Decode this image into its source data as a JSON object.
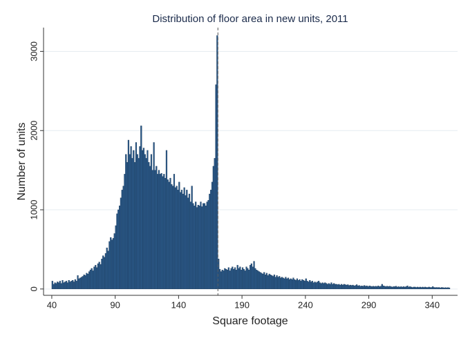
{
  "chart_data": {
    "type": "histogram",
    "title": "Distribution of floor area in new units, 2011",
    "x_label": "Square footage",
    "y_label": "Number of units",
    "bins": [
      40,
      41,
      42,
      43,
      44,
      45,
      46,
      47,
      48,
      49,
      50,
      51,
      52,
      53,
      54,
      55,
      56,
      57,
      58,
      59,
      60,
      61,
      62,
      63,
      64,
      65,
      66,
      67,
      68,
      69,
      70,
      71,
      72,
      73,
      74,
      75,
      76,
      77,
      78,
      79,
      80,
      81,
      82,
      83,
      84,
      85,
      86,
      87,
      88,
      89,
      90,
      91,
      92,
      93,
      94,
      95,
      96,
      97,
      98,
      99,
      100,
      101,
      102,
      103,
      104,
      105,
      106,
      107,
      108,
      109,
      110,
      111,
      112,
      113,
      114,
      115,
      116,
      117,
      118,
      119,
      120,
      121,
      122,
      123,
      124,
      125,
      126,
      127,
      128,
      129,
      130,
      131,
      132,
      133,
      134,
      135,
      136,
      137,
      138,
      139,
      140,
      141,
      142,
      143,
      144,
      145,
      146,
      147,
      148,
      149,
      150,
      151,
      152,
      153,
      154,
      155,
      156,
      157,
      158,
      159,
      160,
      161,
      162,
      163,
      164,
      165,
      166,
      167,
      168,
      169,
      170,
      171,
      172,
      173,
      174,
      175,
      176,
      177,
      178,
      179,
      180,
      181,
      182,
      183,
      184,
      185,
      186,
      187,
      188,
      189,
      190,
      191,
      192,
      193,
      194,
      195,
      196,
      197,
      198,
      199,
      200,
      201,
      202,
      203,
      204,
      205,
      206,
      207,
      208,
      209,
      210,
      211,
      212,
      213,
      214,
      215,
      216,
      217,
      218,
      219,
      220,
      221,
      222,
      223,
      224,
      225,
      226,
      227,
      228,
      229,
      230,
      231,
      232,
      233,
      234,
      235,
      236,
      237,
      238,
      239,
      240,
      241,
      242,
      243,
      244,
      245,
      246,
      247,
      248,
      249,
      250,
      251,
      252,
      253,
      254,
      255,
      256,
      257,
      258,
      259,
      260,
      261,
      262,
      263,
      264,
      265,
      266,
      267,
      268,
      269,
      270,
      271,
      272,
      273,
      274,
      275,
      276,
      277,
      278,
      279,
      280,
      281,
      282,
      283,
      284,
      285,
      286,
      287,
      288,
      289,
      290,
      291,
      292,
      293,
      294,
      295,
      296,
      297,
      298,
      299,
      300,
      301,
      302,
      303,
      304,
      305,
      306,
      307,
      308,
      309,
      310,
      311,
      312,
      313,
      314,
      315,
      316,
      317,
      318,
      319,
      320,
      321,
      322,
      323,
      324,
      325,
      326,
      327,
      328,
      329,
      330,
      331,
      332,
      333,
      334,
      335,
      336,
      337,
      338,
      339,
      340,
      341,
      342,
      343,
      344,
      345,
      346,
      347,
      348,
      349,
      350,
      351,
      352,
      353,
      354
    ],
    "values": [
      100,
      60,
      80,
      70,
      90,
      80,
      100,
      70,
      110,
      80,
      90,
      100,
      80,
      110,
      90,
      100,
      110,
      90,
      120,
      100,
      170,
      130,
      140,
      150,
      160,
      180,
      170,
      200,
      190,
      220,
      240,
      260,
      230,
      280,
      300,
      270,
      320,
      340,
      310,
      380,
      420,
      400,
      450,
      520,
      480,
      600,
      650,
      620,
      640,
      700,
      800,
      950,
      1000,
      1050,
      1150,
      1250,
      1300,
      1450,
      1700,
      1600,
      1880,
      1700,
      1800,
      1650,
      1750,
      1600,
      1850,
      1700,
      1650,
      1800,
      2060,
      1750,
      1780,
      1700,
      1650,
      1750,
      1600,
      1550,
      1700,
      1500,
      1850,
      1500,
      1550,
      1450,
      1500,
      1450,
      1460,
      1420,
      1450,
      1400,
      1750,
      1380,
      1350,
      1400,
      1320,
      1300,
      1450,
      1280,
      1300,
      1250,
      1350,
      1220,
      1250,
      1200,
      1280,
      1180,
      1250,
      1150,
      1200,
      1100,
      1300,
      1080,
      1050,
      1100,
      1030,
      1060,
      1050,
      1100,
      1040,
      1080,
      1080,
      1050,
      1100,
      1120,
      1200,
      1250,
      1350,
      1550,
      1650,
      2580,
      3200,
      380,
      250,
      220,
      240,
      230,
      260,
      250,
      240,
      270,
      230,
      260,
      280,
      250,
      270,
      240,
      300,
      260,
      280,
      240,
      270,
      250,
      230,
      280,
      260,
      240,
      300,
      320,
      280,
      350,
      260,
      240,
      230,
      220,
      210,
      200,
      190,
      210,
      180,
      200,
      170,
      190,
      180,
      170,
      160,
      180,
      150,
      170,
      150,
      160,
      140,
      150,
      140,
      130,
      150,
      130,
      140,
      120,
      130,
      120,
      140,
      120,
      110,
      130,
      110,
      120,
      100,
      120,
      110,
      100,
      130,
      100,
      90,
      110,
      90,
      100,
      80,
      90,
      80,
      90,
      100,
      80,
      70,
      80,
      70,
      80,
      70,
      60,
      70,
      60,
      80,
      60,
      70,
      60,
      60,
      55,
      60,
      50,
      60,
      50,
      60,
      55,
      50,
      55,
      45,
      50,
      45,
      50,
      40,
      45,
      55,
      40,
      45,
      35,
      40,
      35,
      45,
      35,
      40,
      30,
      40,
      35,
      30,
      35,
      30,
      35,
      30,
      40,
      30,
      35,
      60,
      40,
      35,
      30,
      35,
      30,
      35,
      30,
      25,
      30,
      30,
      35,
      25,
      30,
      25,
      30,
      25,
      30,
      25,
      30,
      40,
      25,
      30,
      25,
      20,
      25,
      25,
      20,
      25,
      20,
      25,
      20,
      25,
      20,
      25,
      20,
      20,
      25,
      20,
      20,
      30,
      20,
      18,
      20,
      18,
      20,
      15,
      20,
      18,
      15,
      18,
      15,
      18,
      15
    ],
    "color": "#2b5a8a",
    "reference_line": 171,
    "xlim": [
      33.5,
      360
    ],
    "xticks": [
      40,
      90,
      140,
      190,
      240,
      290,
      340
    ],
    "ylim": [
      -80,
      3300
    ],
    "yticks": [
      0,
      1000,
      2000,
      3000
    ],
    "grid": true
  }
}
